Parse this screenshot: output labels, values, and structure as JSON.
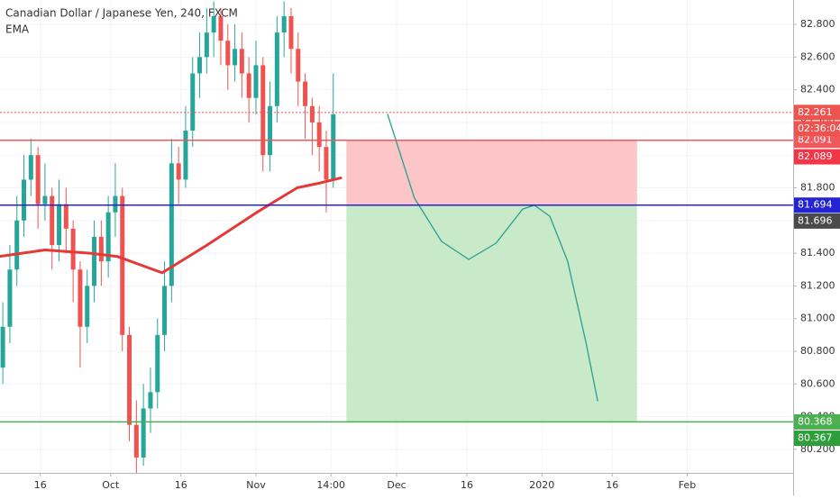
{
  "chart_data": {
    "type": "candlestick",
    "title": "Canadian Dollar / Japanese Yen, 240, FXCM",
    "up_color": "#26a69a",
    "down_color": "#ef5350",
    "grid": true,
    "x": [
      7,
      8.5,
      10,
      11.5,
      13,
      14.5,
      16,
      17.5,
      19,
      20.5,
      22,
      23.5,
      25,
      26.5,
      28,
      29.5,
      31,
      32.5,
      34,
      35.5,
      37,
      38.5,
      40,
      41.5,
      43,
      44.5,
      46,
      47.5,
      49,
      50.5,
      52,
      53.5,
      55,
      56.5,
      58,
      59.5,
      61,
      62.5,
      64,
      65.5,
      67,
      68.5,
      70,
      71.5,
      73,
      74.5,
      76,
      77.5
    ],
    "open": [
      80.7,
      80.95,
      81.3,
      81.6,
      81.85,
      82.0,
      81.7,
      81.75,
      81.45,
      81.7,
      81.55,
      81.3,
      80.95,
      81.2,
      81.5,
      81.35,
      81.65,
      81.75,
      80.9,
      80.35,
      80.15,
      80.45,
      80.55,
      80.9,
      81.2,
      81.95,
      81.85,
      82.15,
      82.5,
      82.6,
      82.75,
      82.85,
      82.7,
      82.55,
      82.65,
      82.5,
      82.35,
      82.55,
      82.0,
      82.3,
      82.75,
      82.85,
      82.65,
      82.45,
      82.3,
      82.2,
      82.05,
      81.85
    ],
    "high": [
      81.1,
      81.45,
      81.75,
      82.0,
      82.1,
      82.05,
      81.95,
      81.8,
      81.85,
      81.8,
      81.6,
      81.35,
      81.3,
      81.6,
      81.6,
      81.75,
      81.95,
      81.8,
      80.95,
      80.5,
      80.6,
      80.7,
      81.0,
      81.35,
      82.1,
      82.05,
      82.3,
      82.6,
      82.75,
      82.9,
      82.94,
      82.9,
      82.8,
      82.8,
      82.75,
      82.6,
      82.7,
      82.6,
      82.45,
      82.85,
      82.94,
      82.9,
      82.75,
      82.5,
      82.35,
      82.3,
      82.15,
      82.5
    ],
    "low": [
      80.6,
      80.85,
      81.2,
      81.5,
      81.75,
      81.55,
      81.6,
      81.3,
      81.35,
      81.4,
      81.1,
      80.7,
      80.85,
      81.1,
      81.2,
      81.25,
      81.5,
      80.8,
      80.25,
      80.05,
      80.1,
      80.3,
      80.45,
      80.8,
      81.1,
      81.7,
      81.8,
      82.05,
      82.35,
      82.5,
      82.6,
      82.55,
      82.4,
      82.45,
      82.35,
      82.2,
      82.25,
      81.9,
      81.9,
      82.2,
      82.6,
      82.5,
      82.3,
      82.1,
      82.0,
      81.9,
      81.65,
      81.8
    ],
    "close": [
      80.95,
      81.3,
      81.6,
      81.85,
      82.0,
      81.7,
      81.75,
      81.45,
      81.7,
      81.55,
      81.3,
      80.95,
      81.2,
      81.5,
      81.35,
      81.65,
      81.75,
      80.9,
      80.35,
      80.15,
      80.45,
      80.55,
      80.9,
      81.2,
      81.95,
      81.85,
      82.15,
      82.5,
      82.6,
      82.75,
      82.85,
      82.7,
      82.55,
      82.65,
      82.5,
      82.35,
      82.55,
      82.0,
      82.3,
      82.75,
      82.85,
      82.65,
      82.45,
      82.3,
      82.2,
      82.05,
      81.85,
      82.25
    ],
    "ema": {
      "name": "EMA",
      "color": "#e53935",
      "x": [
        6.4,
        16,
        25.6,
        31.4,
        41,
        50.6,
        61.2,
        69.8,
        74.7,
        79.1
      ],
      "values": [
        81.38,
        81.42,
        81.4,
        81.38,
        81.28,
        81.45,
        81.65,
        81.8,
        81.83,
        81.86
      ]
    },
    "projection": {
      "color": "#2a9d8f",
      "x": [
        89.1,
        94.8,
        100.6,
        106.4,
        112.2,
        117.9,
        120.4,
        123.7,
        127.5,
        131.4,
        133.9
      ],
      "values": [
        82.249,
        81.737,
        81.472,
        81.362,
        81.461,
        81.67,
        81.693,
        81.626,
        81.351,
        80.855,
        80.497
      ]
    },
    "levels": [
      {
        "value": 82.261,
        "label": "82.261",
        "color": "#ef5350",
        "style": "dotted"
      },
      {
        "value": 82.091,
        "label": "82.091",
        "color": "#f0595c",
        "style": "solid"
      },
      {
        "value": 81.694,
        "label": "81.694",
        "color": "#2424d4",
        "style": "solid"
      },
      {
        "value": 80.368,
        "label": "80.368",
        "color": "#4caf50",
        "style": "solid"
      }
    ],
    "countdown": "02:36:04",
    "position": {
      "x_start": 80.3,
      "x_end": 142.3,
      "stop": {
        "value": 82.089,
        "label": "82.089",
        "color": "#f23645",
        "fill": "#fcc5c7"
      },
      "entry": {
        "value": 81.696,
        "label": "81.696",
        "color": "#4a4a4a"
      },
      "target": {
        "value": 80.367,
        "label": "80.367",
        "color": "#2e9e3a",
        "fill": "#c9eac9"
      }
    },
    "xlim": [
      6.4,
      175.6
    ],
    "ylim": [
      80.056,
      82.949
    ],
    "xticks": [
      {
        "value": 15,
        "label": "16"
      },
      {
        "value": 30,
        "label": "Oct"
      },
      {
        "value": 45,
        "label": "16"
      },
      {
        "value": 61,
        "label": "Nov"
      },
      {
        "value": 77,
        "label": "14:00"
      },
      {
        "value": 91,
        "label": "Dec"
      },
      {
        "value": 106,
        "label": "16"
      },
      {
        "value": 122,
        "label": "2020"
      },
      {
        "value": 137,
        "label": "16"
      },
      {
        "value": 153,
        "label": "Feb"
      }
    ],
    "yticks": [
      {
        "value": 82.8,
        "label": "82.800"
      },
      {
        "value": 82.6,
        "label": "82.600"
      },
      {
        "value": 82.4,
        "label": "82.400"
      },
      {
        "value": 82.2,
        "label": "82.200"
      },
      {
        "value": 82.0,
        "label": "82.000"
      },
      {
        "value": 81.8,
        "label": "81.800"
      },
      {
        "value": 81.6,
        "label": "81.600"
      },
      {
        "value": 81.4,
        "label": "81.400"
      },
      {
        "value": 81.2,
        "label": "81.200"
      },
      {
        "value": 81.0,
        "label": "81.000"
      },
      {
        "value": 80.8,
        "label": "80.800"
      },
      {
        "value": 80.6,
        "label": "80.600"
      },
      {
        "value": 80.4,
        "label": "80.400"
      },
      {
        "value": 80.2,
        "label": "80.200"
      }
    ]
  }
}
